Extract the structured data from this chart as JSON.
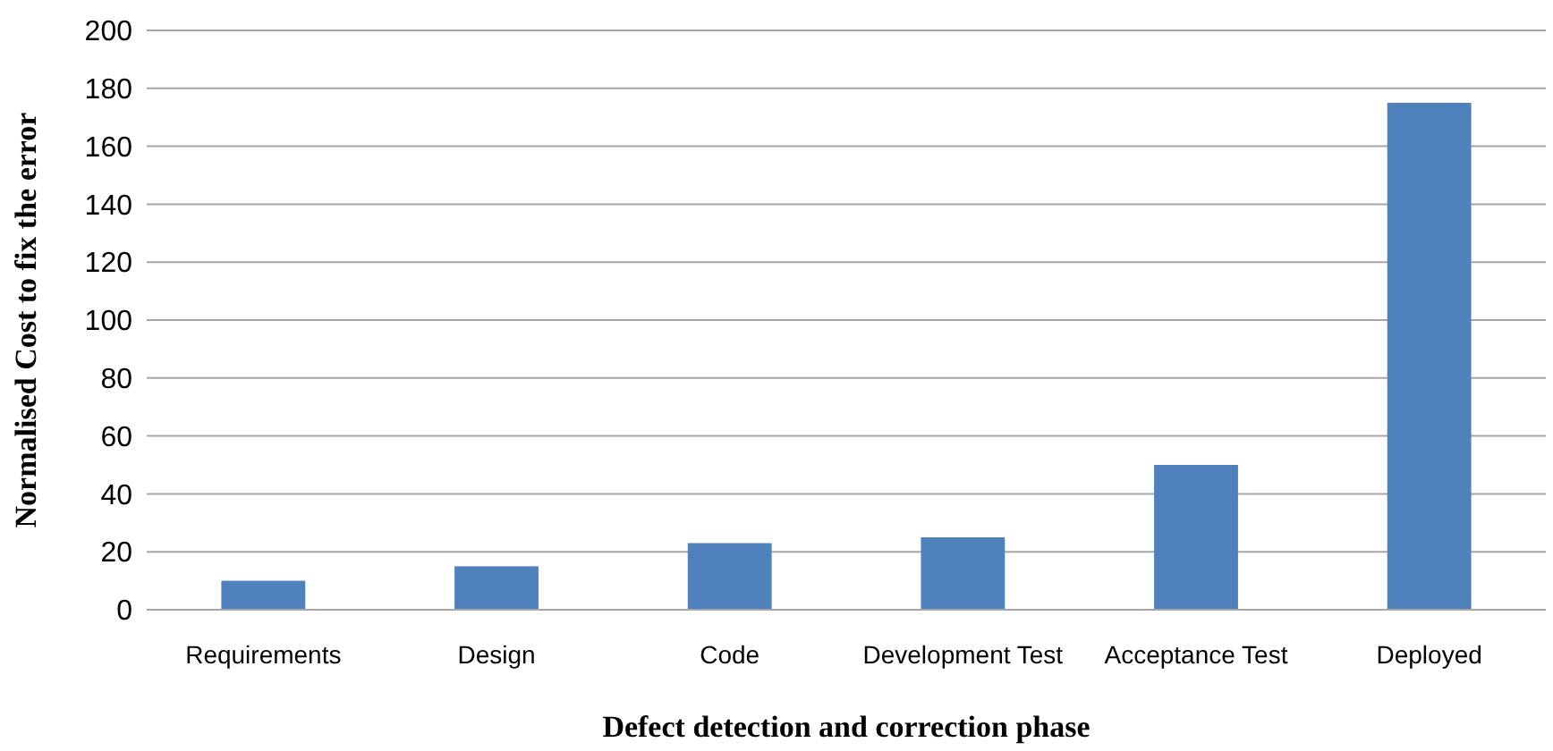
{
  "chart_data": {
    "type": "bar",
    "xlabel": "Defect detection and correction phase",
    "ylabel": "Normalised Cost to fix the error",
    "categories": [
      "Requirements",
      "Design",
      "Code",
      "Development Test",
      "Acceptance Test",
      "Deployed"
    ],
    "values": [
      10,
      15,
      23,
      25,
      50,
      175
    ],
    "color": "#4f81bd",
    "ylim": [
      0,
      200
    ],
    "yticks": [
      0,
      20,
      40,
      60,
      80,
      100,
      120,
      140,
      160,
      180,
      200
    ],
    "grid": "y"
  }
}
